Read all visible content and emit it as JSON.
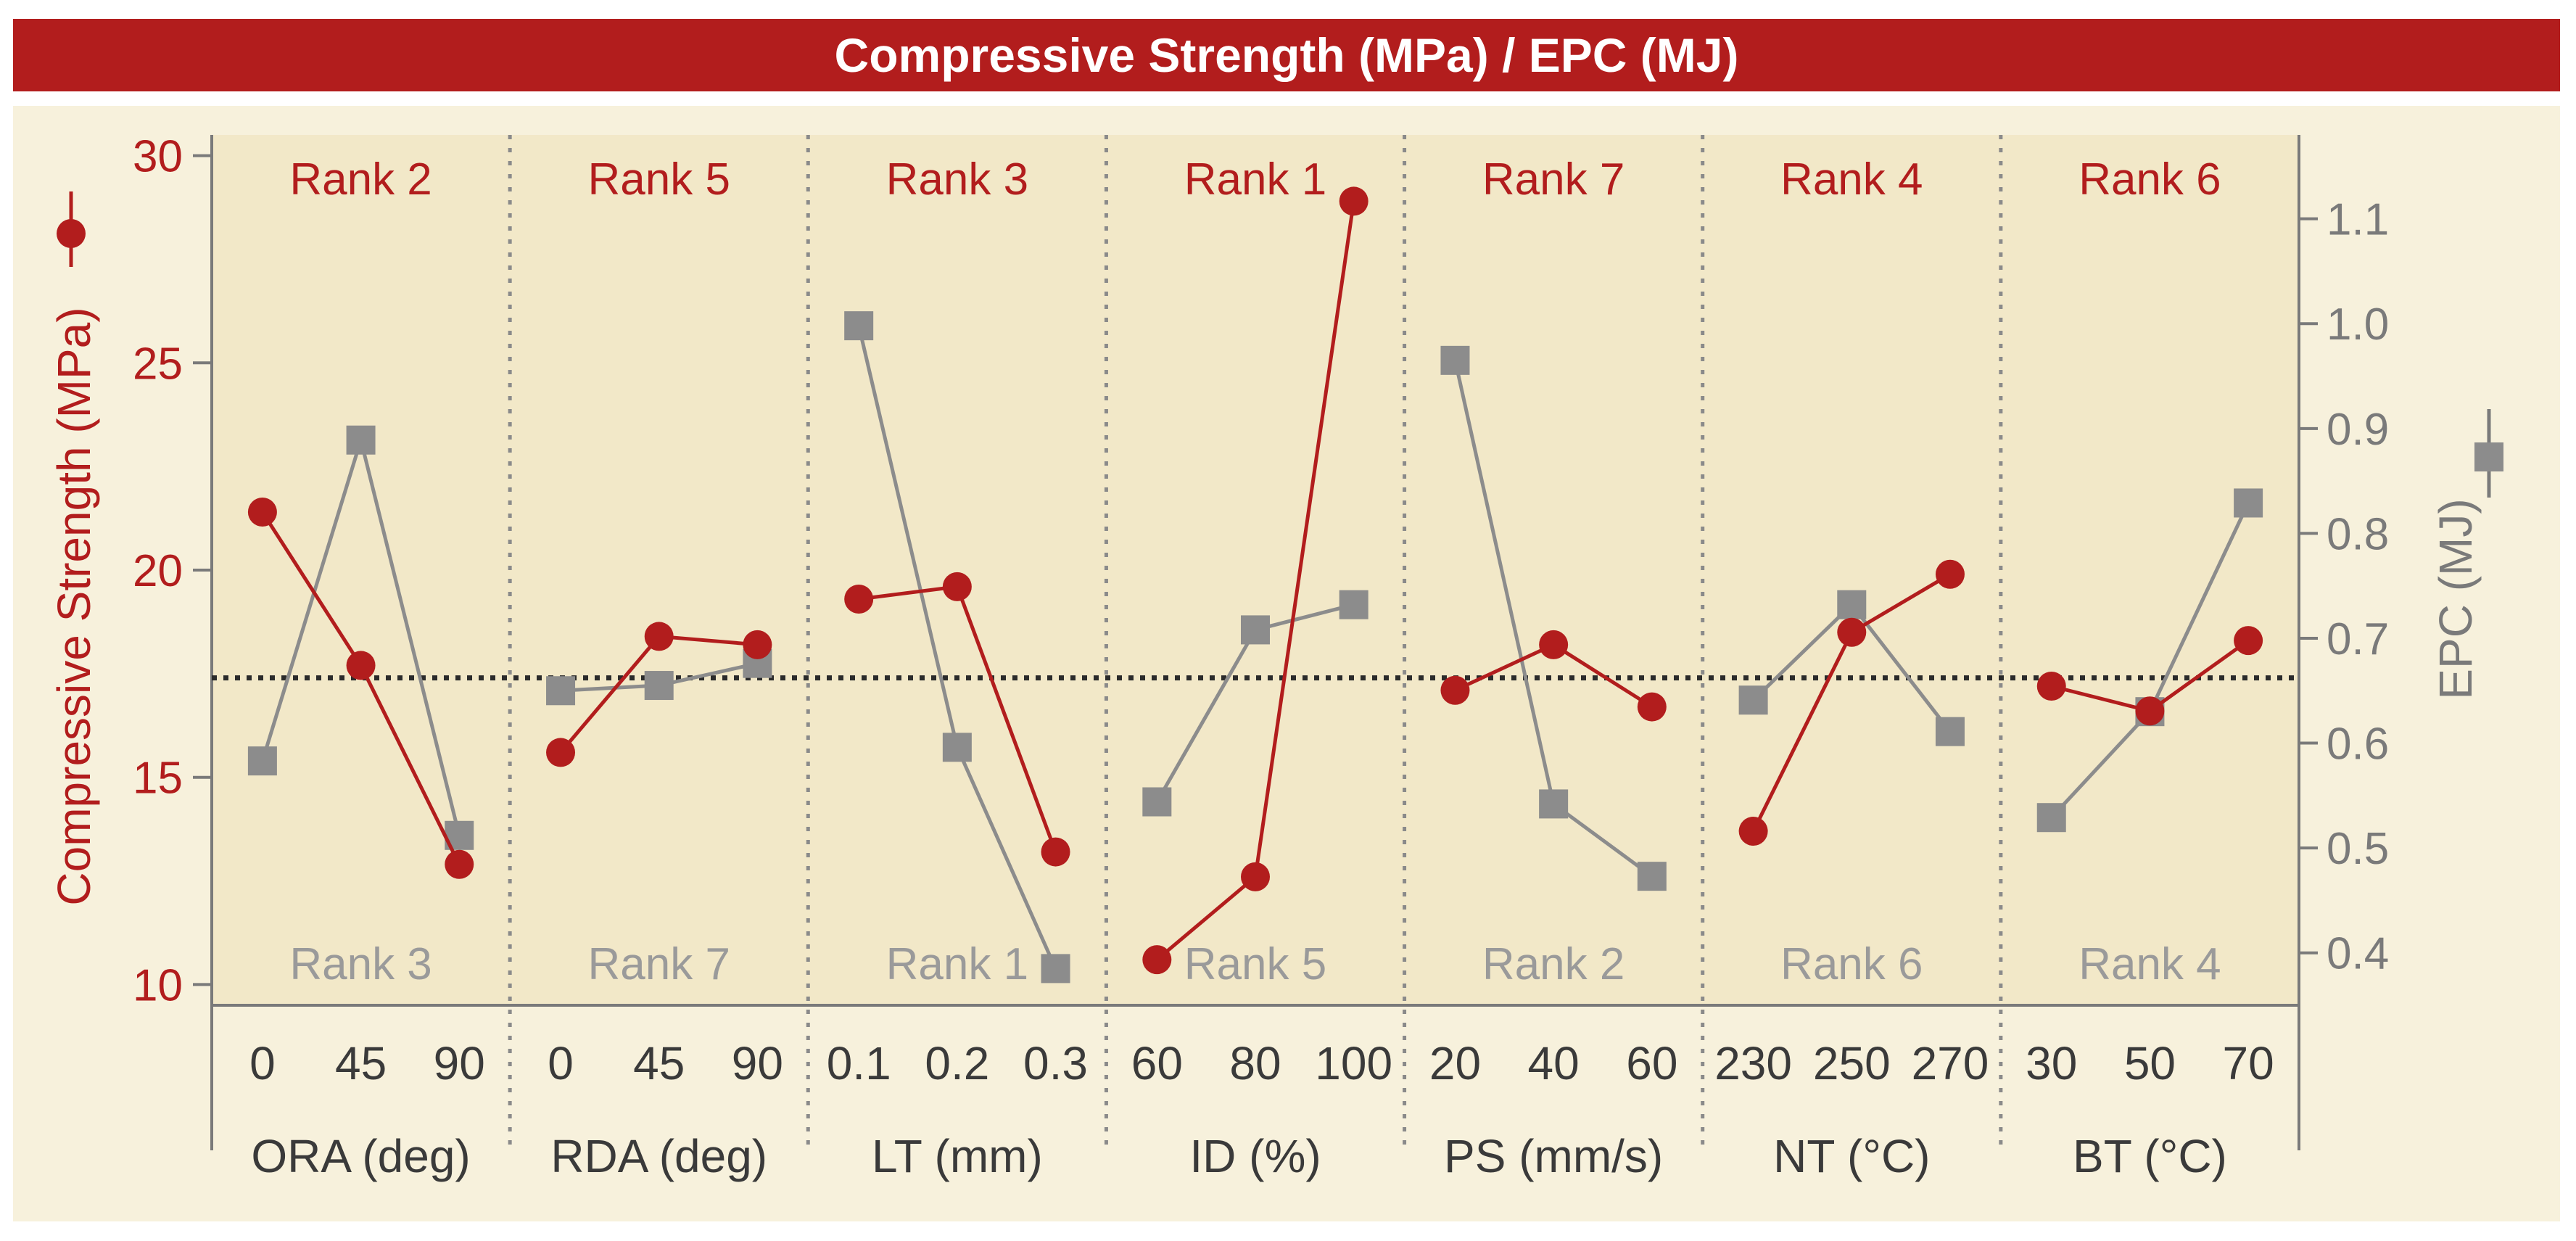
{
  "chart_data": {
    "type": "line",
    "title": "Compressive Strength (MPa) / EPC (MJ)",
    "ylabel_left": "Compressive Strength (MPa)",
    "ylabel_right": "EPC (MJ)",
    "ylim_left": [
      9.5,
      30.5
    ],
    "ylim_right": [
      0.35,
      1.18
    ],
    "yticks_left": [
      10,
      15,
      20,
      25,
      30
    ],
    "yticks_right": [
      0.4,
      0.5,
      0.6,
      0.7,
      0.8,
      0.9,
      1.0,
      1.1
    ],
    "ytick_labels_right": [
      "0.4",
      "0.5",
      "0.6",
      "0.7",
      "0.8",
      "0.9",
      "1.0",
      "1.1"
    ],
    "mean_line_left": 17.4,
    "colors": {
      "strength": "#b21d1d",
      "epc": "#8c8c8c",
      "banner": "#b21d1d",
      "panel": "#f7f1dc",
      "highlight": "#f2e8c8"
    },
    "groups": [
      {
        "name": "ORA (deg)",
        "levels": [
          "0",
          "45",
          "90"
        ],
        "rank_top": "Rank 2",
        "rank_bottom": "Rank 3",
        "strength": [
          21.4,
          17.7,
          12.9
        ],
        "epc": [
          0.583,
          0.889,
          0.512
        ]
      },
      {
        "name": "RDA (deg)",
        "levels": [
          "0",
          "45",
          "90"
        ],
        "rank_top": "Rank 5",
        "rank_bottom": "Rank 7",
        "strength": [
          15.6,
          18.4,
          18.2
        ],
        "epc": [
          0.65,
          0.655,
          0.676
        ]
      },
      {
        "name": "LT (mm)",
        "levels": [
          "0.1",
          "0.2",
          "0.3"
        ],
        "rank_top": "Rank 3",
        "rank_bottom": "Rank 1",
        "strength": [
          19.3,
          19.6,
          13.2
        ],
        "epc": [
          0.998,
          0.596,
          0.385
        ]
      },
      {
        "name": "ID (%)",
        "levels": [
          "60",
          "80",
          "100"
        ],
        "rank_top": "Rank 1",
        "rank_bottom": "Rank 5",
        "strength": [
          10.6,
          12.6,
          28.9
        ],
        "epc": [
          0.544,
          0.708,
          0.732
        ]
      },
      {
        "name": "PS (mm/s)",
        "levels": [
          "20",
          "40",
          "60"
        ],
        "rank_top": "Rank 7",
        "rank_bottom": "Rank 2",
        "strength": [
          17.1,
          18.2,
          16.7
        ],
        "epc": [
          0.965,
          0.542,
          0.473
        ]
      },
      {
        "name": "NT (°C)",
        "levels": [
          "230",
          "250",
          "270"
        ],
        "rank_top": "Rank 4",
        "rank_bottom": "Rank 6",
        "strength": [
          13.7,
          18.5,
          19.9
        ],
        "epc": [
          0.641,
          0.732,
          0.611
        ]
      },
      {
        "name": "BT (°C)",
        "levels": [
          "30",
          "50",
          "70"
        ],
        "rank_top": "Rank 6",
        "rank_bottom": "Rank 4",
        "strength": [
          17.2,
          16.6,
          18.3
        ],
        "epc": [
          0.529,
          0.63,
          0.829
        ]
      }
    ]
  }
}
